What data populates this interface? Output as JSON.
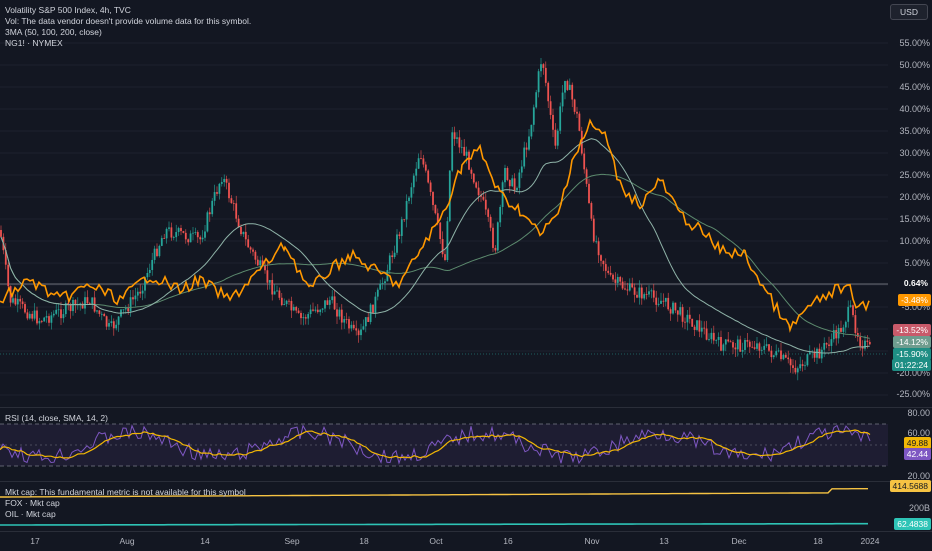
{
  "main": {
    "legend": [
      "Volatility S&P 500 Index, 4h, TVC",
      "Vol: The data vendor doesn't provide volume data for this symbol.",
      "3MA (50, 100, 200, close)",
      "NG1! · NYMEX"
    ],
    "currency_button": "USD",
    "y_ticks": [
      "55.00%",
      "50.00%",
      "45.00%",
      "40.00%",
      "35.00%",
      "30.00%",
      "25.00%",
      "20.00%",
      "15.00%",
      "10.00%",
      "5.00%",
      "-5.00%",
      "-20.00%",
      "-25.00%"
    ],
    "price_labels": {
      "baseline": "0.64%",
      "ng": "-3.48%",
      "ma1": "-13.52%",
      "ma2": "-14.12%",
      "vix": "-15.90%",
      "countdown": "01:22:24"
    },
    "colors": {
      "up": "#26a69a",
      "down": "#ef5350",
      "ng": "#ff9800",
      "ma_fast": "#c85a6a",
      "ma_mid": "#8fb3a8",
      "ma_slow": "#5c8a6e",
      "rsi": "#7e57c2",
      "rsi_ma": "#f2b705",
      "mktcap1": "#f6c343",
      "mktcap2": "#2ec4b6"
    }
  },
  "rsi": {
    "legend": "RSI (14, close, SMA, 14, 2)",
    "y_ticks": [
      "80.00",
      "60.00",
      "20.00"
    ],
    "value_labels": {
      "sma": "49.88",
      "rsi": "42.44"
    }
  },
  "mktcap": {
    "legend": [
      "Mkt cap: This fundamental metric is not available for this symbol",
      "FOX · Mkt cap",
      "OIL · Mkt cap"
    ],
    "y_ticks": [
      "200B"
    ],
    "value_labels": {
      "fox": "414.5688",
      "oil": "62.4838"
    }
  },
  "x_axis": [
    "17",
    "Aug",
    "14",
    "Sep",
    "18",
    "Oct",
    "16",
    "Nov",
    "13",
    "Dec",
    "18",
    "2024"
  ]
}
